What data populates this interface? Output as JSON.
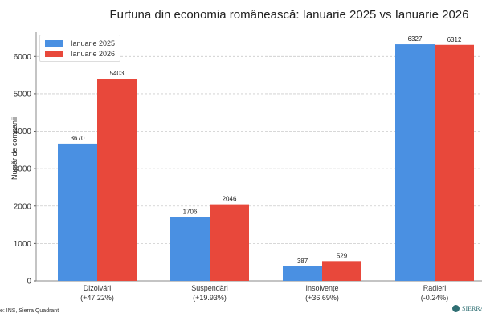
{
  "chart_data": {
    "type": "bar",
    "title": "Furtuna din economia românească: Ianuarie 2025 vs Ianuarie 2026",
    "xlabel": "",
    "ylabel": "Număr de companii",
    "categories": [
      "Dizolvări\n(+47.22%)",
      "Suspendări\n(+19.93%)",
      "Insolvențe\n(+36.69%)",
      "Radieri\n(-0.24%)"
    ],
    "category_names": [
      "Dizolvări",
      "Suspendări",
      "Insolvențe",
      "Radieri"
    ],
    "category_changes": [
      "(+47.22%)",
      "(+19.93%)",
      "(+36.69%)",
      "(-0.24%)"
    ],
    "series": [
      {
        "name": "Ianuarie 2025",
        "values": [
          3670,
          1706,
          387,
          6327
        ],
        "color": "#4a90e2"
      },
      {
        "name": "Ianuarie 2026",
        "values": [
          5403,
          2046,
          529,
          6312
        ],
        "color": "#e8483b"
      }
    ],
    "yticks": [
      0,
      1000,
      2000,
      3000,
      4000,
      5000,
      6000
    ],
    "ylim": [
      0,
      6650
    ],
    "grid": "horizontal dashed",
    "legend": "top-left"
  },
  "source": "e: INS, Sierra Quadrant",
  "logo_text": "SIERRA Q"
}
